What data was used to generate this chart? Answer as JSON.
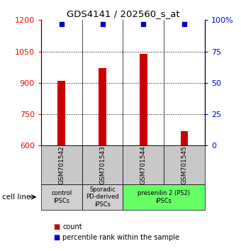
{
  "title": "GDS4141 / 202560_s_at",
  "samples": [
    "GSM701542",
    "GSM701543",
    "GSM701544",
    "GSM701545"
  ],
  "counts": [
    910,
    970,
    1040,
    670
  ],
  "percentile_ranks": [
    97,
    97,
    97,
    97
  ],
  "ylim_left": [
    600,
    1200
  ],
  "ylim_right": [
    0,
    100
  ],
  "yticks_left": [
    600,
    750,
    900,
    1050,
    1200
  ],
  "yticks_right": [
    0,
    25,
    50,
    75,
    100
  ],
  "bar_color": "#cc0000",
  "dot_color": "#0000cc",
  "bar_width": 0.18,
  "groups": [
    {
      "label": "control\nIPSCs",
      "samples": [
        0
      ],
      "color": "#d0d0d0"
    },
    {
      "label": "Sporadic\nPD-derived\niPSCs",
      "samples": [
        1
      ],
      "color": "#d0d0d0"
    },
    {
      "label": "presenilin 2 (PS2)\niPSCs",
      "samples": [
        2,
        3
      ],
      "color": "#66ff66"
    }
  ],
  "cell_line_label": "cell line",
  "legend_count_label": "count",
  "legend_percentile_label": "percentile rank within the sample",
  "background_color": "#ffffff",
  "sample_box_color": "#c8c8c8"
}
